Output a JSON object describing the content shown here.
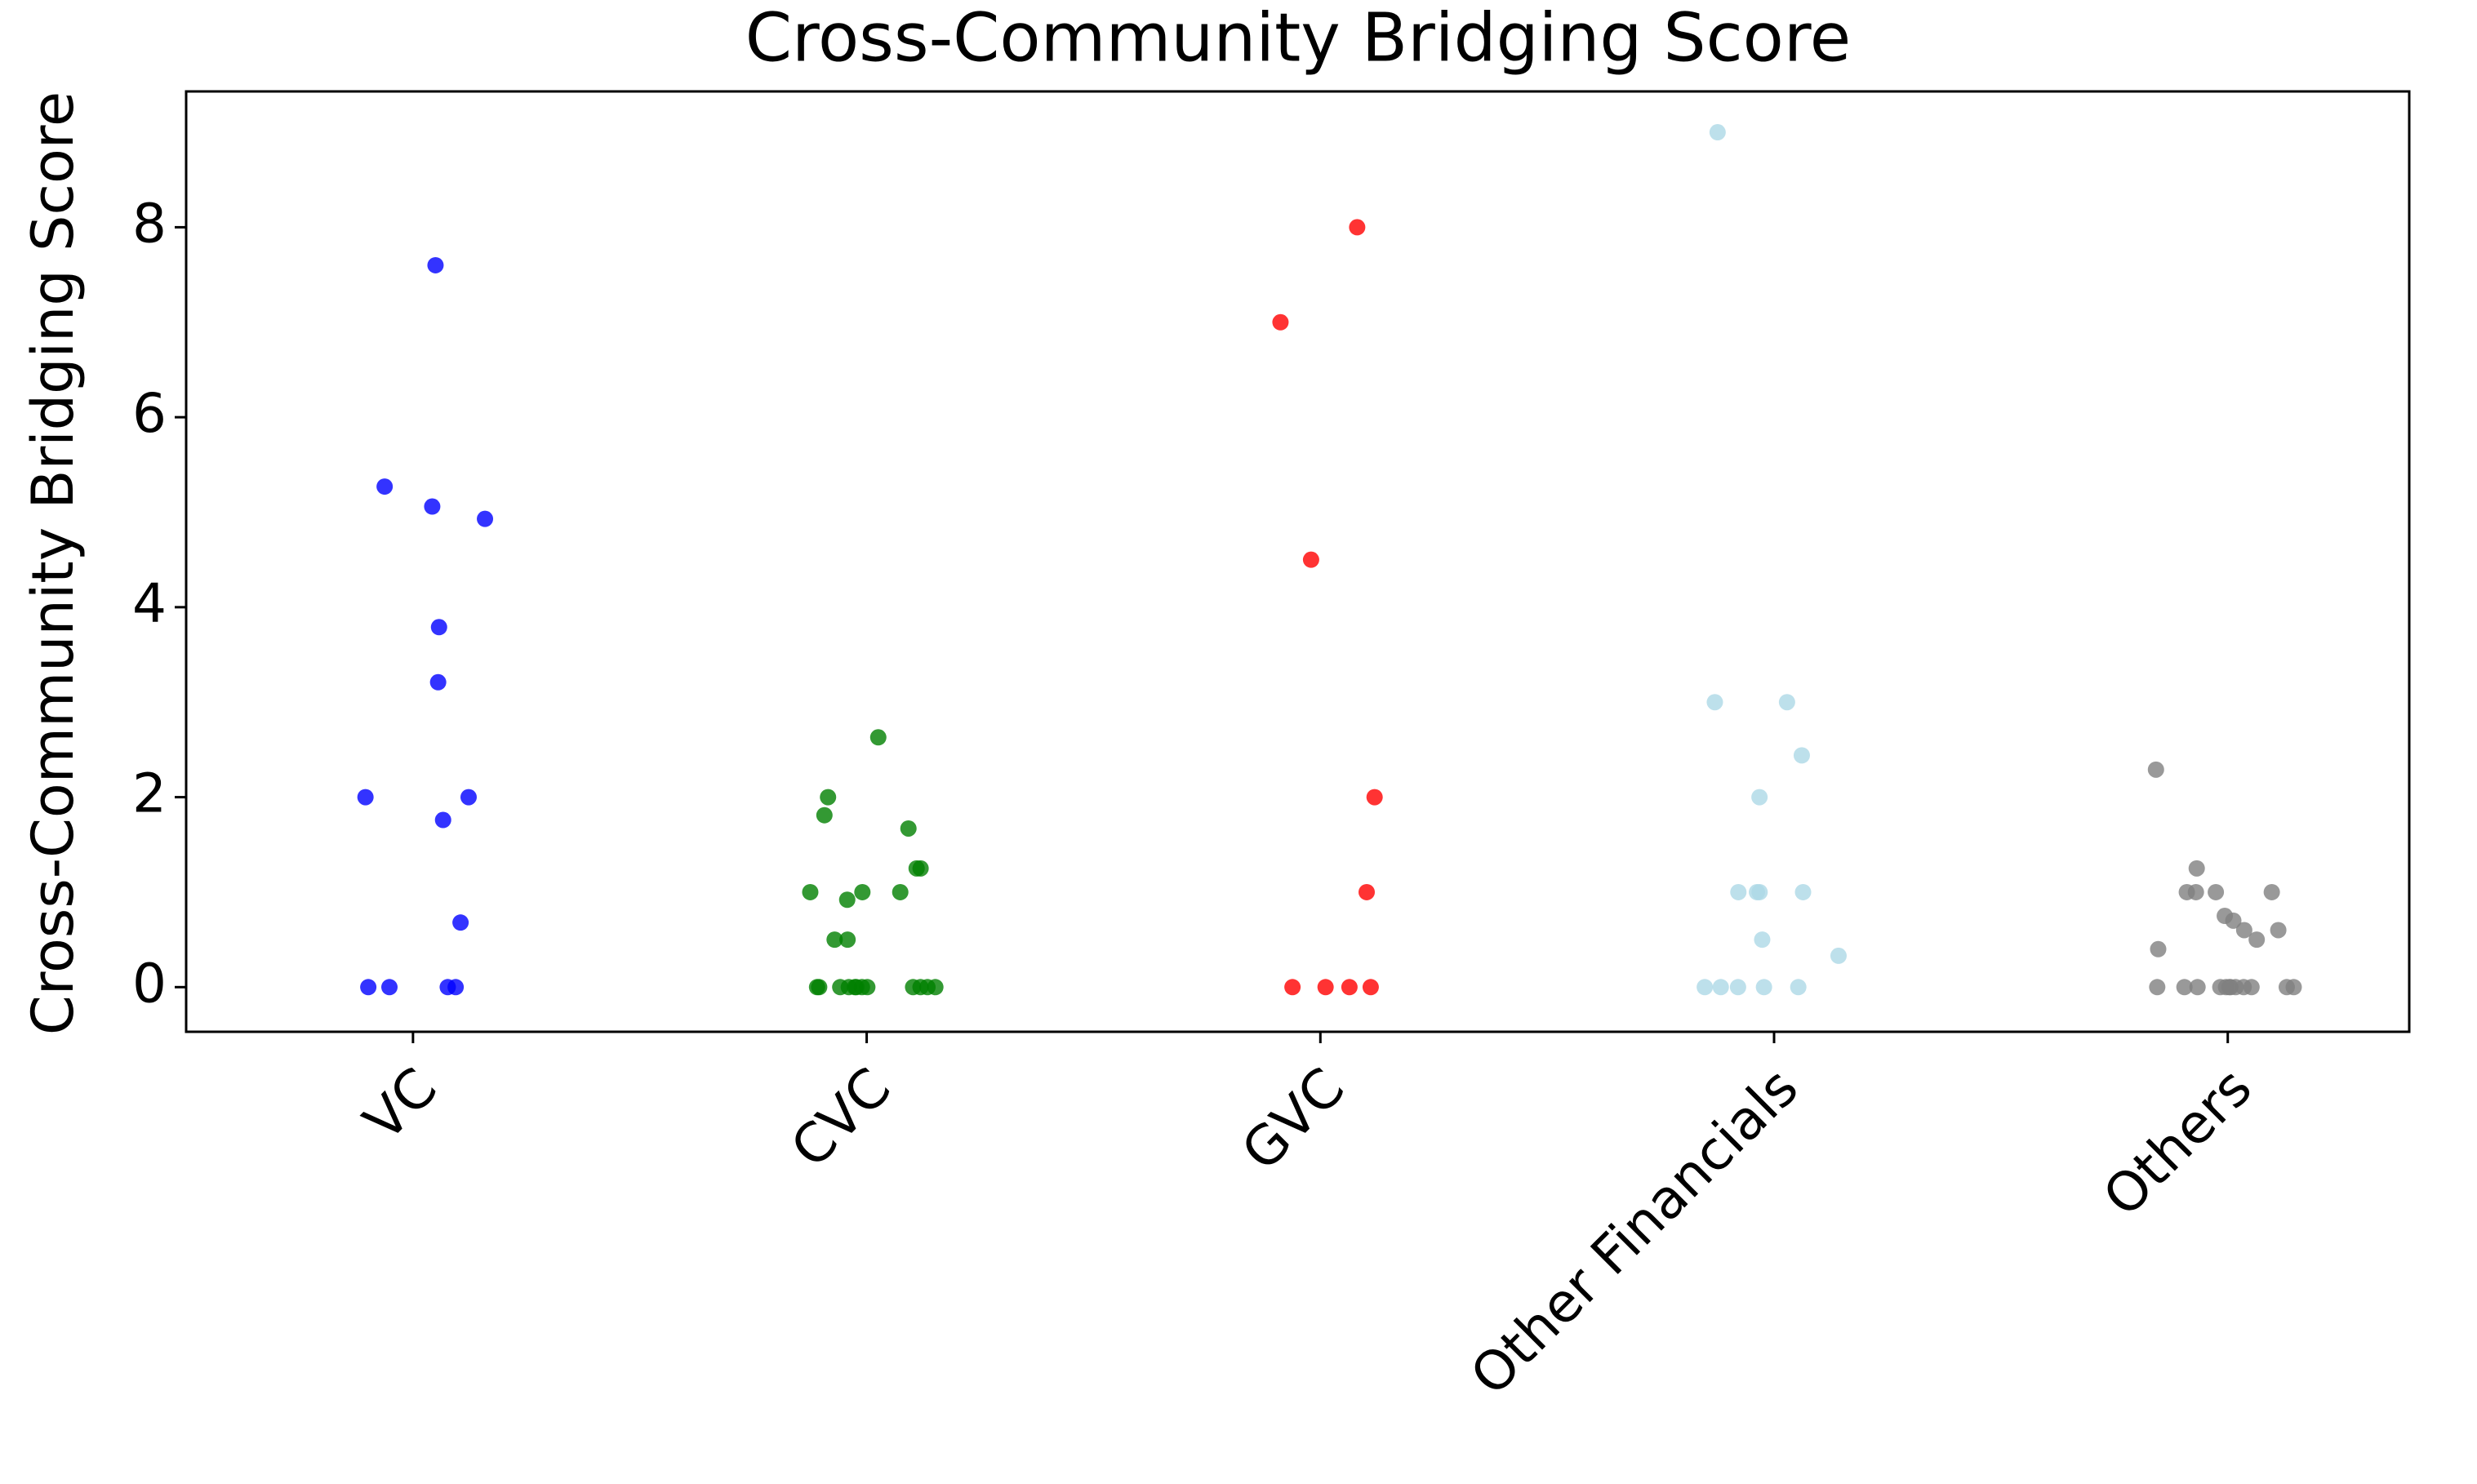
{
  "chart_data": {
    "type": "strip",
    "title": "Cross-Community Bridging Score",
    "y_label": "Cross-Community Bridging Score",
    "ylim": [
      -0.47,
      9.43
    ],
    "yticks": [
      0,
      2,
      4,
      6,
      8
    ],
    "series": [
      {
        "name": "VC",
        "color": "#0000ff",
        "values": [
          7.6,
          5.27,
          5.06,
          4.93,
          3.79,
          3.21,
          2,
          2,
          1.76,
          0.68,
          0,
          0,
          0,
          0
        ]
      },
      {
        "name": "CVC",
        "color": "#008000",
        "values": [
          2.63,
          2,
          1.81,
          1.67,
          1.25,
          1.25,
          1,
          1,
          1,
          0.92,
          0.5,
          0.5,
          0,
          0,
          0,
          0,
          0,
          0,
          0,
          0,
          0,
          0,
          0,
          0
        ]
      },
      {
        "name": "GVC",
        "color": "#ff0000",
        "values": [
          8,
          7,
          4.5,
          2,
          1,
          0,
          0,
          0,
          0
        ]
      },
      {
        "name": "Other Financials",
        "color": "#add8e6",
        "values": [
          9,
          3,
          3,
          2.44,
          2,
          1,
          1,
          1,
          1,
          0.5,
          0.33,
          0,
          0,
          0,
          0,
          0
        ]
      },
      {
        "name": "Others",
        "color": "#808080",
        "values": [
          2.29,
          1.25,
          1,
          1,
          1,
          1,
          0.75,
          0.7,
          0.6,
          0.6,
          0.5,
          0.4,
          0,
          0,
          0,
          0,
          0,
          0,
          0,
          0,
          0,
          0,
          0,
          0
        ]
      }
    ]
  }
}
